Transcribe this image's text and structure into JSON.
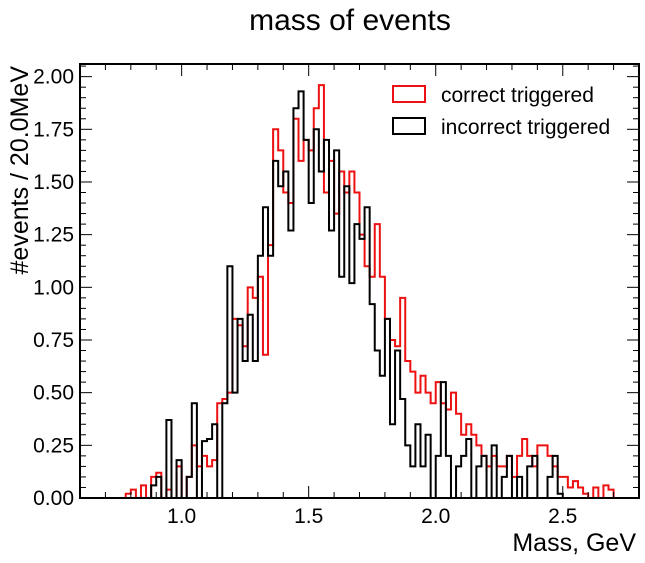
{
  "chart_data": {
    "type": "histogram-step",
    "title": "mass of events",
    "xlabel": "Mass, GeV",
    "ylabel": "#events / 20.0MeV",
    "xlim": [
      0.6,
      2.8
    ],
    "ylim": [
      0,
      2.06
    ],
    "bin_width": 0.02,
    "bin_start": 0.78,
    "xticks": [
      "1.0",
      "1.5",
      "2.0",
      "2.5"
    ],
    "xtick_values": [
      1.0,
      1.5,
      2.0,
      2.5
    ],
    "yticks": [
      "0.00",
      "0.25",
      "0.50",
      "0.75",
      "1.00",
      "1.25",
      "1.50",
      "1.75",
      "2.00"
    ],
    "ytick_values": [
      0,
      0.25,
      0.5,
      0.75,
      1.0,
      1.25,
      1.5,
      1.75,
      2.0
    ],
    "legend_position": "top-right",
    "series": [
      {
        "name": "correct triggered",
        "color": "#ee1111",
        "values": [
          0.02,
          0.04,
          0.0,
          0.06,
          0.0,
          0.1,
          0.12,
          0.0,
          0.04,
          0.0,
          0.15,
          0.0,
          0.1,
          0.25,
          0.15,
          0.2,
          0.15,
          0.18,
          0.45,
          0.47,
          0.5,
          0.85,
          0.82,
          0.72,
          1.0,
          0.95,
          1.05,
          0.68,
          1.2,
          1.75,
          1.65,
          1.45,
          1.4,
          1.8,
          1.6,
          1.7,
          1.65,
          1.85,
          1.96,
          1.45,
          1.6,
          1.35,
          1.55,
          1.45,
          1.55,
          1.45,
          1.25,
          1.1,
          1.05,
          1.3,
          1.05,
          0.85,
          0.75,
          0.72,
          0.95,
          0.65,
          0.6,
          0.5,
          0.58,
          0.5,
          0.45,
          0.55,
          0.45,
          0.42,
          0.5,
          0.4,
          0.3,
          0.35,
          0.3,
          0.25,
          0.2,
          0.15,
          0.2,
          0.15,
          0.15,
          0.2,
          0.1,
          0.2,
          0.28,
          0.2,
          0.15,
          0.25,
          0.25,
          0.2,
          0.15,
          0.1,
          0.1,
          0.05,
          0.08,
          0.05,
          0.02,
          0.0,
          0.05,
          0.0,
          0.06,
          0.04
        ]
      },
      {
        "name": "incorrect triggered",
        "color": "#000000",
        "values": [
          0.0,
          0.0,
          0.0,
          0.0,
          0.0,
          0.06,
          0.1,
          0.0,
          0.37,
          0.0,
          0.18,
          0.0,
          0.1,
          0.45,
          0.0,
          0.27,
          0.28,
          0.35,
          0.0,
          0.45,
          1.1,
          0.5,
          0.85,
          0.65,
          0.87,
          0.65,
          1.15,
          1.38,
          1.15,
          1.6,
          1.48,
          1.55,
          1.27,
          1.85,
          1.93,
          1.7,
          1.4,
          1.75,
          1.55,
          1.7,
          1.27,
          1.65,
          1.05,
          1.48,
          1.02,
          1.3,
          1.23,
          1.38,
          0.92,
          0.7,
          0.58,
          0.85,
          0.35,
          0.7,
          0.47,
          0.25,
          0.15,
          0.35,
          0.15,
          0.3,
          0.0,
          0.2,
          0.55,
          0.2,
          0.0,
          0.15,
          0.2,
          0.28,
          0.0,
          0.15,
          0.2,
          0.0,
          0.25,
          0.0,
          0.1,
          0.2,
          0.0,
          0.1,
          0.0,
          0.15,
          0.2,
          0.0,
          0.0,
          0.1,
          0.2,
          0.02,
          0.0,
          0.0,
          0.0,
          0.0,
          0.0,
          0.0,
          0.0,
          0.0,
          0.0,
          0.0
        ]
      }
    ]
  }
}
